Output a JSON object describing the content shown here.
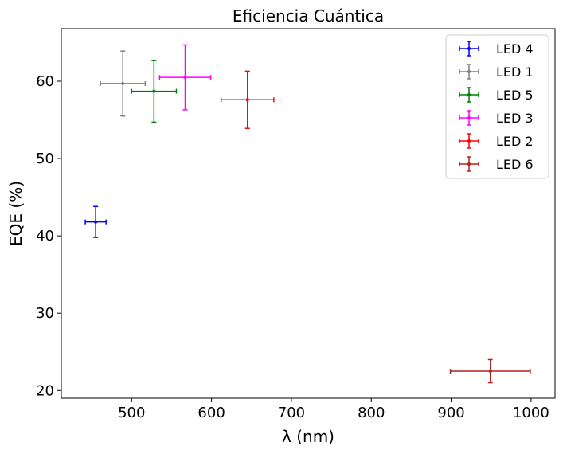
{
  "chart_data": {
    "type": "scatter",
    "title": "Eficiencia Cuántica",
    "xlabel": "λ (nm)",
    "ylabel": "EQE (%)",
    "xlim": [
      412,
      1030
    ],
    "ylim": [
      19,
      66.8
    ],
    "xticks": [
      500,
      600,
      700,
      800,
      900,
      1000
    ],
    "yticks": [
      20,
      30,
      40,
      50,
      60
    ],
    "xtick_labels": [
      "500",
      "600",
      "700",
      "800",
      "900",
      "1000"
    ],
    "ytick_labels": [
      "20",
      "30",
      "40",
      "50",
      "60"
    ],
    "grid": false,
    "legend_position": "top-right",
    "series": [
      {
        "name": "LED 4",
        "color": "#0000ff",
        "x": 455,
        "y": 41.8,
        "xerr": 13,
        "yerr": 2.0
      },
      {
        "name": "LED 1",
        "color": "#808080",
        "x": 489,
        "y": 59.7,
        "xerr": 28,
        "yerr": 4.2
      },
      {
        "name": "LED 5",
        "color": "#008000",
        "x": 528,
        "y": 58.7,
        "xerr": 28,
        "yerr": 4.0
      },
      {
        "name": "LED 3",
        "color": "#ff00ff",
        "x": 567,
        "y": 60.5,
        "xerr": 32,
        "yerr": 4.2
      },
      {
        "name": "LED 2",
        "color": "#ff0000",
        "x": 645,
        "y": 57.6,
        "xerr": 33,
        "yerr": 3.7
      },
      {
        "name": "LED 6",
        "color": "#b22222",
        "x": 949,
        "y": 22.5,
        "xerr": 50,
        "yerr": 1.5
      }
    ]
  }
}
